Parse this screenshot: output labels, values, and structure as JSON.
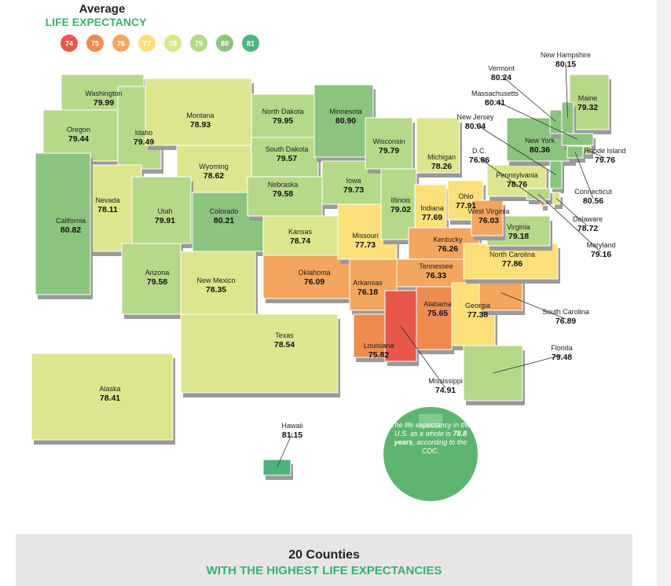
{
  "header": {
    "title": "Average",
    "subtitle": "LIFE EXPECTANCY"
  },
  "legend": [
    {
      "value": 74,
      "color": "#e8574a"
    },
    {
      "value": 75,
      "color": "#ef8b4e"
    },
    {
      "value": 76,
      "color": "#f2a65e"
    },
    {
      "value": 77,
      "color": "#fbe07a"
    },
    {
      "value": 78,
      "color": "#dde68e"
    },
    {
      "value": 79,
      "color": "#b6d889"
    },
    {
      "value": 80,
      "color": "#8bc47e"
    },
    {
      "value": 81,
      "color": "#4fb27d"
    }
  ],
  "states": [
    {
      "name": "Washington",
      "value": "79.99"
    },
    {
      "name": "Oregon",
      "value": "79.44"
    },
    {
      "name": "Idaho",
      "value": "79.49"
    },
    {
      "name": "Montana",
      "value": "78.93"
    },
    {
      "name": "Wyoming",
      "value": "78.62"
    },
    {
      "name": "Nevada",
      "value": "78.11"
    },
    {
      "name": "California",
      "value": "80.82"
    },
    {
      "name": "Utah",
      "value": "79.91"
    },
    {
      "name": "Colorado",
      "value": "80.21"
    },
    {
      "name": "Arizona",
      "value": "79.58"
    },
    {
      "name": "New Mexico",
      "value": "78.35"
    },
    {
      "name": "Texas",
      "value": "78.54"
    },
    {
      "name": "North Dakota",
      "value": "79.95"
    },
    {
      "name": "South Dakota",
      "value": "79.57"
    },
    {
      "name": "Nebraska",
      "value": "79.58"
    },
    {
      "name": "Kansas",
      "value": "78.74"
    },
    {
      "name": "Oklahoma",
      "value": "76.09"
    },
    {
      "name": "Minnesota",
      "value": "80.90"
    },
    {
      "name": "Iowa",
      "value": "79.73"
    },
    {
      "name": "Missouri",
      "value": "77.73"
    },
    {
      "name": "Arkansas",
      "value": "76.18"
    },
    {
      "name": "Louisiana",
      "value": "75.82"
    },
    {
      "name": "Wisconsin",
      "value": "79.79"
    },
    {
      "name": "Illinois",
      "value": "79.02"
    },
    {
      "name": "Michigan",
      "value": "78.26"
    },
    {
      "name": "Indiana",
      "value": "77.69"
    },
    {
      "name": "Ohio",
      "value": "77.91"
    },
    {
      "name": "Kentucky",
      "value": "76.26"
    },
    {
      "name": "Tennessee",
      "value": "76.33"
    },
    {
      "name": "Mississippi",
      "value": "74.91"
    },
    {
      "name": "Alabama",
      "value": "75.65"
    },
    {
      "name": "Georgia",
      "value": "77.38"
    },
    {
      "name": "Florida",
      "value": "79.48"
    },
    {
      "name": "South Carolina",
      "value": "76.89"
    },
    {
      "name": "North Carolina",
      "value": "77.86"
    },
    {
      "name": "Virginia",
      "value": "79.18"
    },
    {
      "name": "West Virginia",
      "value": "76.03"
    },
    {
      "name": "Pennsylvania",
      "value": "78.76"
    },
    {
      "name": "New York",
      "value": "80.36"
    },
    {
      "name": "Maine",
      "value": "79.32"
    },
    {
      "name": "Vermont",
      "value": "80.24"
    },
    {
      "name": "New Hampshire",
      "value": "80.15"
    },
    {
      "name": "Massachusetts",
      "value": "80.41"
    },
    {
      "name": "Rhode Island",
      "value": "79.76"
    },
    {
      "name": "Connecticut",
      "value": "80.56"
    },
    {
      "name": "New Jersey",
      "value": "80.04"
    },
    {
      "name": "Delaware",
      "value": "78.72"
    },
    {
      "name": "Maryland",
      "value": "79.16"
    },
    {
      "name": "D.C.",
      "value": "76.86"
    },
    {
      "name": "Alaska",
      "value": "78.41"
    },
    {
      "name": "Hawaii",
      "value": "81.15"
    }
  ],
  "note": {
    "before": "The life expectancy in the U.S. as a whole is ",
    "emphasis": "78.8 years",
    "after": ", according to the CDC."
  },
  "footer": {
    "title": "20 Counties",
    "subtitle": "WITH THE HIGHEST LIFE EXPECTANCIES"
  }
}
